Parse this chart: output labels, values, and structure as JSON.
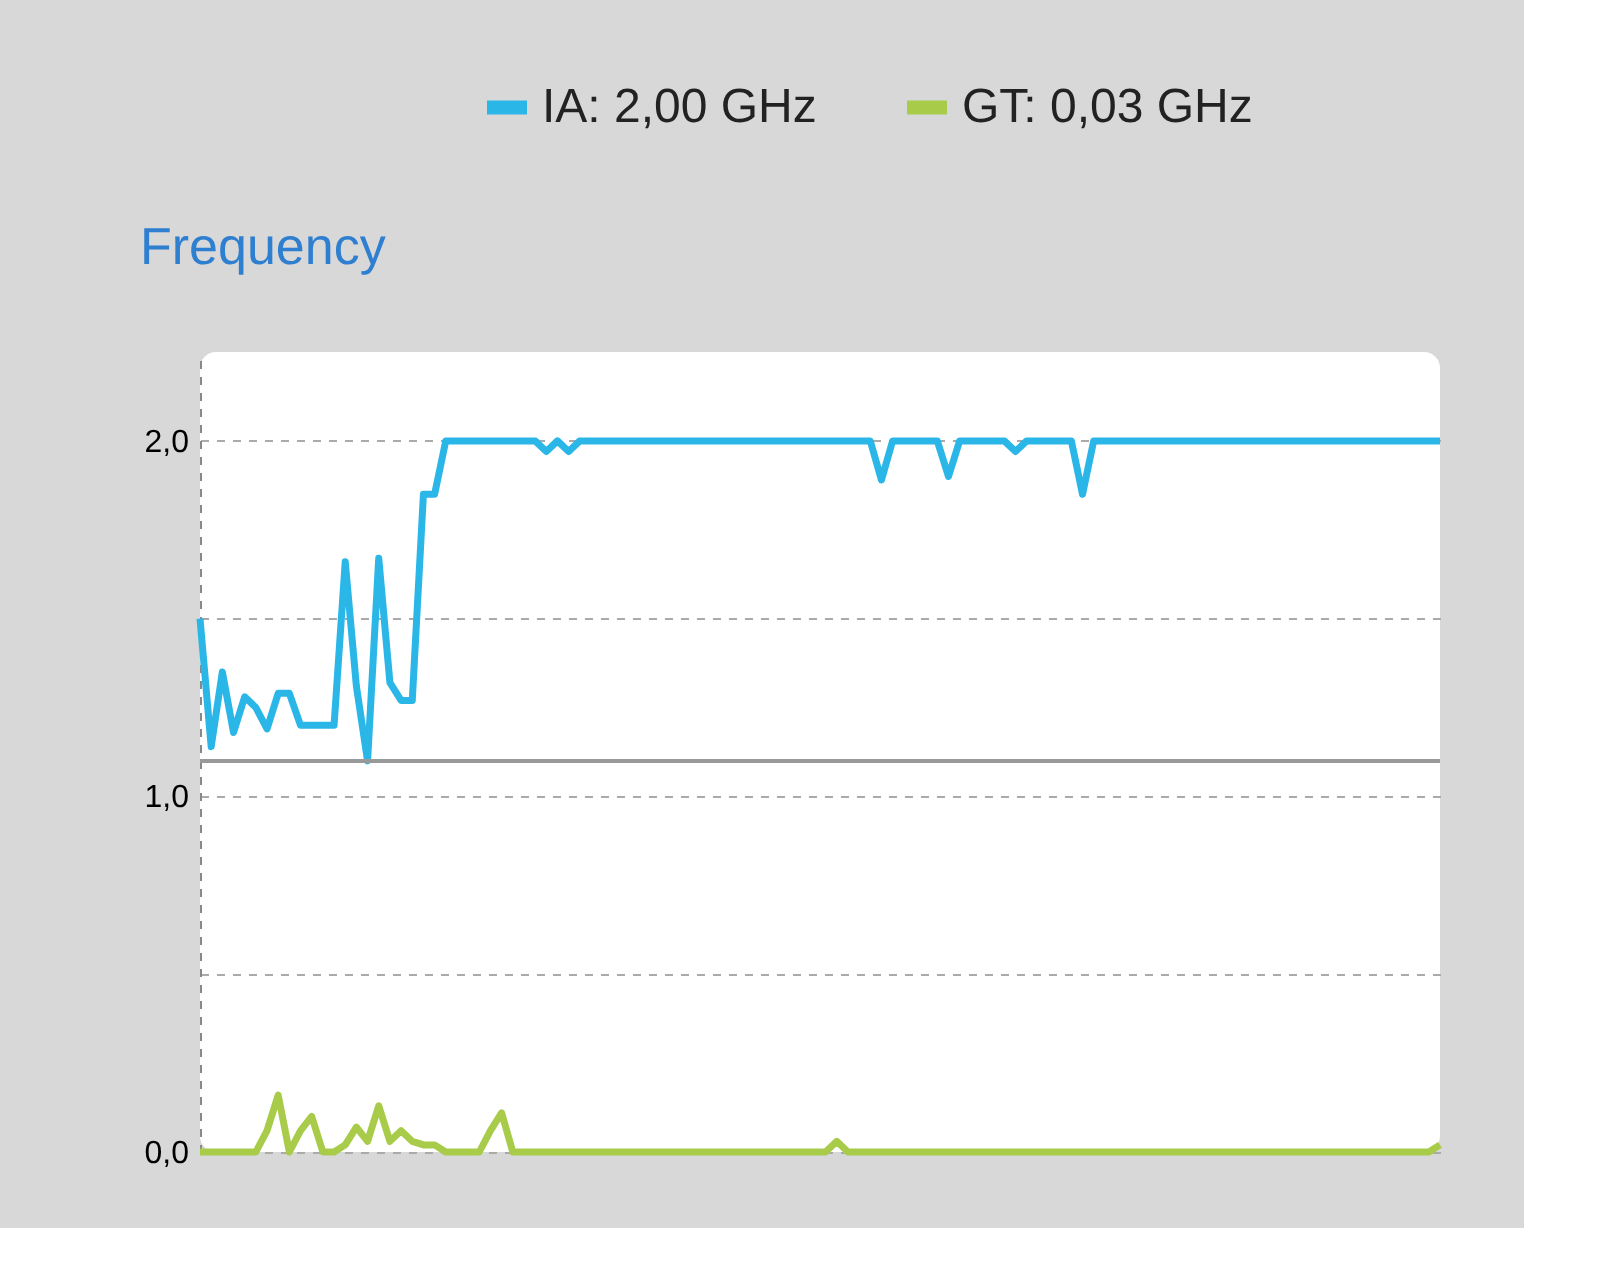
{
  "chart_data": {
    "type": "line",
    "title": "Frequency",
    "legend": "top",
    "grid": "y",
    "line_style": "solid",
    "marker": "none",
    "tick_labels": "y",
    "categories": [
      null,
      null,
      null,
      null,
      null,
      null,
      null,
      null,
      null,
      null,
      null,
      null,
      null,
      null,
      null,
      null,
      null,
      null,
      null,
      null,
      null,
      null,
      null,
      null,
      null,
      null,
      null,
      null,
      null,
      null,
      null,
      null,
      null,
      null,
      null,
      null,
      null,
      null,
      null,
      null,
      null,
      null,
      null,
      null,
      null,
      null,
      null,
      null,
      null,
      null,
      null,
      null,
      null,
      null,
      null,
      null,
      null,
      null,
      null,
      null,
      null,
      null,
      null,
      null,
      null,
      null,
      null,
      null,
      null,
      null,
      null,
      null,
      null,
      null,
      null,
      null,
      null,
      null,
      null,
      null,
      null,
      null,
      null,
      null,
      null,
      null,
      null,
      null,
      null,
      null,
      null,
      null,
      null,
      null,
      null,
      null,
      null,
      null,
      null,
      null,
      null,
      null,
      null,
      null,
      null,
      null,
      null,
      null,
      null,
      null,
      null,
      null
    ],
    "ylim": [
      0,
      2.25
    ],
    "yticks": [
      {
        "value": 0,
        "label": "0,0"
      },
      {
        "value": 0.5,
        "label": null
      },
      {
        "value": 1,
        "label": "1,0"
      },
      {
        "value": 1.5,
        "label": null
      },
      {
        "value": 2,
        "label": "2,0"
      }
    ],
    "ref_lines": [
      {
        "axis": "y",
        "value": 1.1,
        "label": null,
        "color": "#999999",
        "line_style": "solid"
      }
    ],
    "series": [
      {
        "name": "IA: 2,00 GHz",
        "color": "#2bb6e8",
        "values": [
          1.5,
          1.14,
          1.35,
          1.18,
          1.28,
          1.25,
          1.19,
          1.29,
          1.29,
          1.2,
          1.2,
          1.2,
          1.2,
          1.66,
          1.31,
          1.1,
          1.67,
          1.32,
          1.27,
          1.27,
          1.85,
          1.85,
          2.0,
          2.0,
          2.0,
          2.0,
          2.0,
          2.0,
          2.0,
          2.0,
          2.0,
          1.97,
          2.0,
          1.97,
          2.0,
          2.0,
          2.0,
          2.0,
          2.0,
          2.0,
          2.0,
          2.0,
          2.0,
          2.0,
          2.0,
          2.0,
          2.0,
          2.0,
          2.0,
          2.0,
          2.0,
          2.0,
          2.0,
          2.0,
          2.0,
          2.0,
          2.0,
          2.0,
          2.0,
          2.0,
          2.0,
          1.89,
          2.0,
          2.0,
          2.0,
          2.0,
          2.0,
          1.9,
          2.0,
          2.0,
          2.0,
          2.0,
          2.0,
          1.97,
          2.0,
          2.0,
          2.0,
          2.0,
          2.0,
          1.85,
          2.0,
          2.0,
          2.0,
          2.0,
          2.0,
          2.0,
          2.0,
          2.0,
          2.0,
          2.0,
          2.0,
          2.0,
          2.0,
          2.0,
          2.0,
          2.0,
          2.0,
          2.0,
          2.0,
          2.0,
          2.0,
          2.0,
          2.0,
          2.0,
          2.0,
          2.0,
          2.0,
          2.0,
          2.0,
          2.0,
          2.0,
          2.0
        ]
      },
      {
        "name": "GT: 0,03 GHz",
        "color": "#a8cc4a",
        "values": [
          0,
          0,
          0,
          0,
          0,
          0,
          0.06,
          0.16,
          0,
          0.06,
          0.1,
          0,
          0,
          0.02,
          0.07,
          0.03,
          0.13,
          0.03,
          0.06,
          0.03,
          0.02,
          0.02,
          0,
          0,
          0,
          0,
          0.06,
          0.11,
          0,
          0,
          0,
          0,
          0,
          0,
          0,
          0,
          0,
          0,
          0,
          0,
          0,
          0,
          0,
          0,
          0,
          0,
          0,
          0,
          0,
          0,
          0,
          0,
          0,
          0,
          0,
          0,
          0,
          0.03,
          0,
          0,
          0,
          0,
          0,
          0,
          0,
          0,
          0,
          0,
          0,
          0,
          0,
          0,
          0,
          0,
          0,
          0,
          0,
          0,
          0,
          0,
          0,
          0,
          0,
          0,
          0,
          0,
          0,
          0,
          0,
          0,
          0,
          0,
          0,
          0,
          0,
          0,
          0,
          0,
          0,
          0,
          0,
          0,
          0,
          0,
          0,
          0,
          0,
          0,
          0,
          0,
          0,
          0.02
        ]
      }
    ]
  }
}
